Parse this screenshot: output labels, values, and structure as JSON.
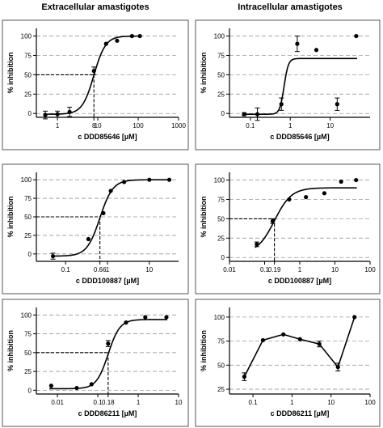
{
  "columns": {
    "left": "Extracellular amastigotes",
    "right": "Intracellular amastigotes"
  },
  "chart_data": [
    {
      "type": "scatter",
      "xscale": "log",
      "xlabel": "c DDD85646 [µM]",
      "ylabel": "% inhibition",
      "xlim": [
        0.3,
        1000
      ],
      "ylim": [
        -5,
        110
      ],
      "xticks": [
        1,
        10,
        100,
        1000
      ],
      "extra_xtick_labels": [
        {
          "x": 8,
          "label": "8"
        }
      ],
      "yticks": [
        0,
        25,
        50,
        75,
        100
      ],
      "grid": "horizontal-dashed",
      "points": [
        {
          "x": 0.5,
          "y": -2,
          "err": 5
        },
        {
          "x": 1.0,
          "y": -1,
          "err": 4
        },
        {
          "x": 2.0,
          "y": 2,
          "err": 6
        },
        {
          "x": 8.0,
          "y": 55,
          "err": 5
        },
        {
          "x": 16,
          "y": 90
        },
        {
          "x": 30,
          "y": 94
        },
        {
          "x": 70,
          "y": 100
        },
        {
          "x": 110,
          "y": 100
        }
      ],
      "curve": {
        "bottom": -1,
        "top": 100,
        "ec50": 8,
        "hill": 3
      },
      "reference": {
        "x": 8,
        "y": 50
      }
    },
    {
      "type": "scatter",
      "xscale": "log",
      "xlabel": "c DDD85646 [µM]",
      "ylabel": "% inhibition",
      "xlim": [
        0.03,
        100
      ],
      "ylim": [
        -5,
        110
      ],
      "xticks": [
        0.1,
        1,
        10
      ],
      "yticks": [
        0,
        25,
        50,
        75,
        100
      ],
      "grid": "horizontal-dashed",
      "points": [
        {
          "x": 0.07,
          "y": -1,
          "err": 2
        },
        {
          "x": 0.15,
          "y": -1,
          "err": 8
        },
        {
          "x": 0.6,
          "y": 12,
          "err": 8
        },
        {
          "x": 1.5,
          "y": 90,
          "err": 10
        },
        {
          "x": 4.5,
          "y": 82
        },
        {
          "x": 15,
          "y": 12,
          "err": 8
        },
        {
          "x": 45,
          "y": 100
        }
      ],
      "curve": {
        "bottom": -1,
        "top": 71,
        "ec50": 0.7,
        "hill": 8
      }
    },
    {
      "type": "scatter",
      "xscale": "log",
      "xlabel": "c DDD100887 [µM]",
      "ylabel": "% inhibition",
      "xlim": [
        0.02,
        50
      ],
      "ylim": [
        -10,
        110
      ],
      "xticks": [
        0.1,
        1,
        10
      ],
      "extra_xtick_labels": [
        {
          "x": 0.66,
          "label": "0.66"
        }
      ],
      "yticks": [
        0,
        25,
        50,
        75,
        100
      ],
      "grid": "horizontal-dashed",
      "points": [
        {
          "x": 0.05,
          "y": -3,
          "err": 4
        },
        {
          "x": 0.35,
          "y": 20
        },
        {
          "x": 0.8,
          "y": 55
        },
        {
          "x": 1.2,
          "y": 85
        },
        {
          "x": 2.5,
          "y": 97
        },
        {
          "x": 10,
          "y": 100
        },
        {
          "x": 30,
          "y": 100
        }
      ],
      "curve": {
        "bottom": -3,
        "top": 100,
        "ec50": 0.66,
        "hill": 2.8
      },
      "reference": {
        "x": 0.66,
        "y": 50
      }
    },
    {
      "type": "scatter",
      "xscale": "log",
      "xlabel": "c DDD100887 [µM]",
      "ylabel": "% inhibition",
      "xlim": [
        0.01,
        100
      ],
      "ylim": [
        -5,
        110
      ],
      "xticks": [
        0.01,
        0.1,
        1,
        10,
        100
      ],
      "extra_xtick_labels": [
        {
          "x": 0.19,
          "label": "0.19"
        }
      ],
      "yticks": [
        0,
        25,
        50,
        75,
        100
      ],
      "grid": "horizontal-dashed",
      "points": [
        {
          "x": 0.06,
          "y": 17,
          "err": 3
        },
        {
          "x": 0.17,
          "y": 47,
          "err": 3
        },
        {
          "x": 0.5,
          "y": 75
        },
        {
          "x": 1.5,
          "y": 78
        },
        {
          "x": 5,
          "y": 83
        },
        {
          "x": 15,
          "y": 98
        },
        {
          "x": 40,
          "y": 100
        }
      ],
      "curve": {
        "bottom": 5,
        "top": 90,
        "ec50": 0.19,
        "hill": 1.8
      },
      "reference": {
        "x": 0.19,
        "y": 50
      }
    },
    {
      "type": "scatter",
      "xscale": "log",
      "xlabel": "c DDD86211 [µM]",
      "ylabel": "% inhibition",
      "xlim": [
        0.003,
        10
      ],
      "ylim": [
        -5,
        110
      ],
      "xticks": [
        0.01,
        0.1,
        1,
        10
      ],
      "extra_xtick_labels": [
        {
          "x": 0.18,
          "label": "0.18"
        }
      ],
      "yticks": [
        0,
        25,
        50,
        75,
        100
      ],
      "grid": "horizontal-dashed",
      "points": [
        {
          "x": 0.007,
          "y": 6
        },
        {
          "x": 0.03,
          "y": 3
        },
        {
          "x": 0.07,
          "y": 8
        },
        {
          "x": 0.18,
          "y": 62,
          "err": 4
        },
        {
          "x": 0.5,
          "y": 90
        },
        {
          "x": 1.5,
          "y": 97
        },
        {
          "x": 5,
          "y": 97
        }
      ],
      "curve": {
        "bottom": 2,
        "top": 94,
        "ec50": 0.18,
        "hill": 3
      },
      "reference": {
        "x": 0.18,
        "y": 50
      }
    },
    {
      "type": "line",
      "xscale": "log",
      "xlabel": "c DDD86211 [µM]",
      "ylabel": "% inhibition",
      "xlim": [
        0.025,
        100
      ],
      "ylim": [
        20,
        110
      ],
      "xticks": [
        0.1,
        1,
        10,
        100
      ],
      "yticks": [
        25,
        50,
        75,
        100
      ],
      "grid": "horizontal-dashed",
      "points": [
        {
          "x": 0.06,
          "y": 38,
          "err": 4
        },
        {
          "x": 0.18,
          "y": 76
        },
        {
          "x": 0.6,
          "y": 82
        },
        {
          "x": 1.6,
          "y": 77
        },
        {
          "x": 5,
          "y": 72,
          "err": 3
        },
        {
          "x": 15,
          "y": 48,
          "err": 4
        },
        {
          "x": 40,
          "y": 100
        }
      ]
    }
  ]
}
